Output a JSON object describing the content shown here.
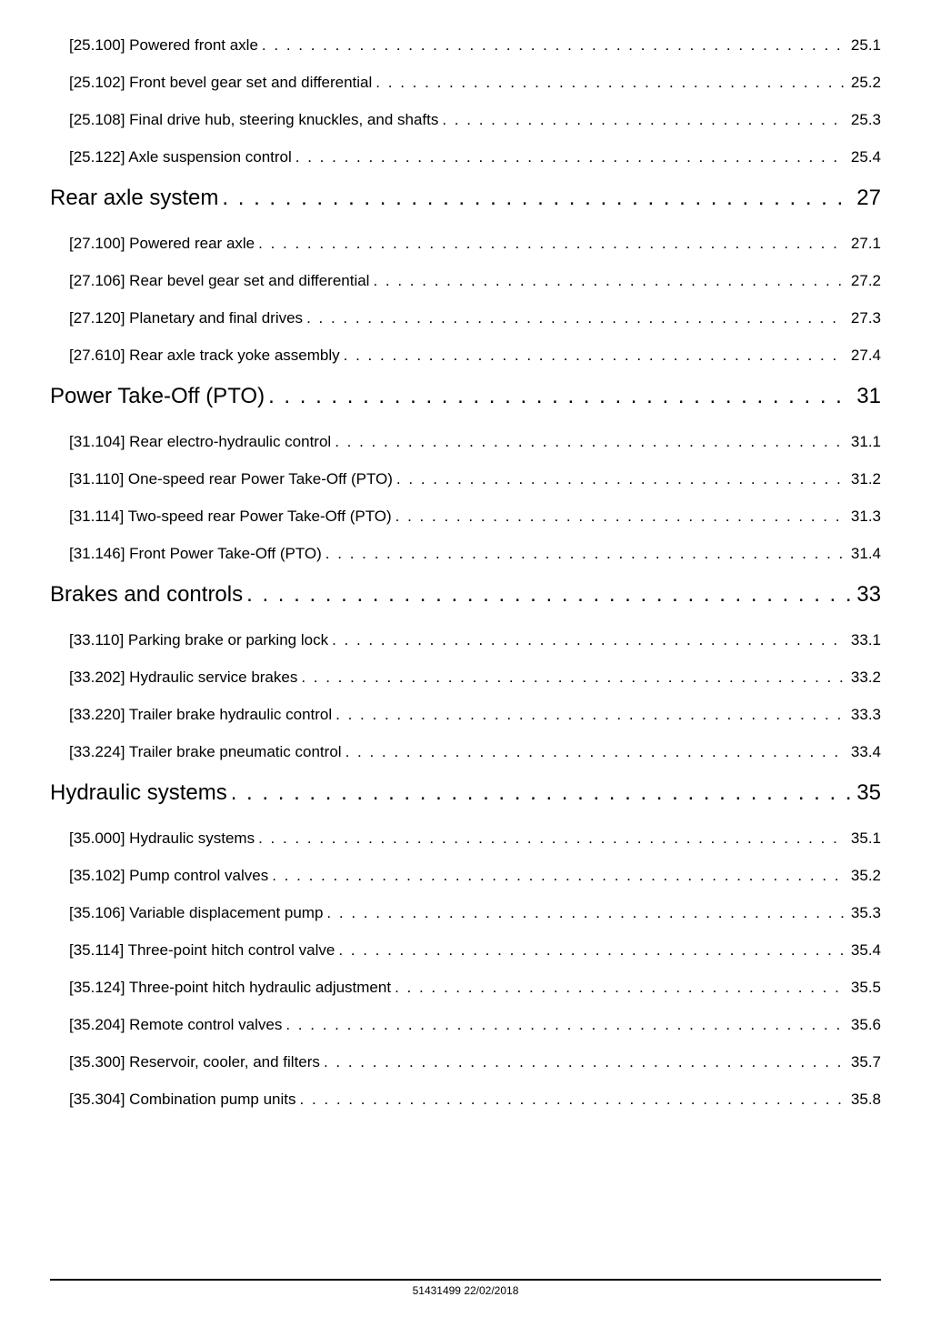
{
  "entries": [
    {
      "level": "sub",
      "label": "[25.100] Powered front axle",
      "page": "25.1"
    },
    {
      "level": "sub",
      "label": "[25.102] Front bevel gear set and differential",
      "page": "25.2"
    },
    {
      "level": "sub",
      "label": "[25.108] Final drive hub, steering knuckles, and shafts",
      "page": "25.3"
    },
    {
      "level": "sub",
      "label": "[25.122] Axle suspension control",
      "page": "25.4"
    },
    {
      "level": "heading",
      "label": "Rear axle system",
      "page": "27"
    },
    {
      "level": "sub",
      "label": "[27.100] Powered rear axle",
      "page": "27.1"
    },
    {
      "level": "sub",
      "label": "[27.106] Rear bevel gear set and differential",
      "page": "27.2"
    },
    {
      "level": "sub",
      "label": "[27.120] Planetary and final drives",
      "page": "27.3"
    },
    {
      "level": "sub",
      "label": "[27.610] Rear axle track yoke assembly",
      "page": "27.4"
    },
    {
      "level": "heading",
      "label": "Power Take-Off (PTO)",
      "page": "31"
    },
    {
      "level": "sub",
      "label": "[31.104] Rear electro-hydraulic control",
      "page": "31.1"
    },
    {
      "level": "sub",
      "label": "[31.110] One-speed rear Power Take-Off (PTO)",
      "page": "31.2"
    },
    {
      "level": "sub",
      "label": "[31.114] Two-speed rear Power Take-Off (PTO)",
      "page": "31.3"
    },
    {
      "level": "sub",
      "label": "[31.146] Front Power Take-Off (PTO)",
      "page": "31.4"
    },
    {
      "level": "heading",
      "label": "Brakes and controls",
      "page": "33"
    },
    {
      "level": "sub",
      "label": "[33.110] Parking brake or parking lock",
      "page": "33.1"
    },
    {
      "level": "sub",
      "label": "[33.202] Hydraulic service brakes",
      "page": "33.2"
    },
    {
      "level": "sub",
      "label": "[33.220] Trailer brake hydraulic control",
      "page": "33.3"
    },
    {
      "level": "sub",
      "label": "[33.224] Trailer brake pneumatic control",
      "page": "33.4"
    },
    {
      "level": "heading",
      "label": "Hydraulic systems",
      "page": "35"
    },
    {
      "level": "sub",
      "label": "[35.000] Hydraulic systems",
      "page": "35.1"
    },
    {
      "level": "sub",
      "label": "[35.102] Pump control valves",
      "page": "35.2"
    },
    {
      "level": "sub",
      "label": "[35.106] Variable displacement pump",
      "page": "35.3"
    },
    {
      "level": "sub",
      "label": "[35.114] Three-point hitch control valve",
      "page": "35.4"
    },
    {
      "level": "sub",
      "label": "[35.124] Three-point hitch hydraulic adjustment",
      "page": "35.5"
    },
    {
      "level": "sub",
      "label": "[35.204] Remote control valves",
      "page": "35.6"
    },
    {
      "level": "sub",
      "label": "[35.300] Reservoir, cooler, and filters",
      "page": "35.7"
    },
    {
      "level": "sub",
      "label": "[35.304] Combination pump units",
      "page": "35.8"
    }
  ],
  "footer": "51431499 22/02/2018",
  "dot_fill": ". . . . . . . . . . . . . . . . . . . . . . . . . . . . . . . . . . . . . . . . . . . . . . . . . . . . . . . . . . . . . . . . . . . . . . . . . . . . . . . . . . . . . . . . . . . . . . . . . . . . . . . . . . . . . . . . . . . . . . . . . . . . . . . . . . ."
}
